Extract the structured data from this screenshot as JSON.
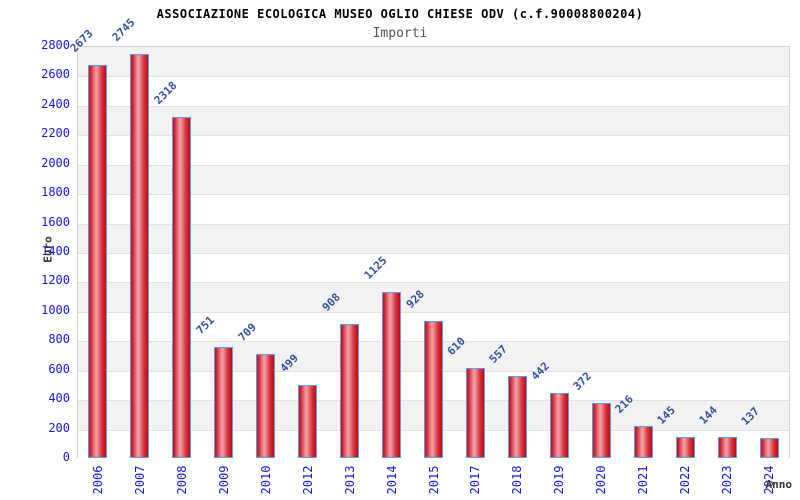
{
  "chart_data": {
    "type": "bar",
    "title": "ASSOCIAZIONE ECOLOGICA MUSEO OGLIO CHIESE ODV (c.f.90008800204)",
    "subtitle": "Importi",
    "xlabel": "Anno",
    "ylabel": "Euro",
    "categories": [
      "2006",
      "2007",
      "2008",
      "2009",
      "2010",
      "2012",
      "2013",
      "2014",
      "2015",
      "2017",
      "2018",
      "2019",
      "2020",
      "2021",
      "2022",
      "2023",
      "2024"
    ],
    "values": [
      2673,
      2745,
      2318,
      751,
      709,
      499,
      908,
      1125,
      928,
      610,
      557,
      442,
      372,
      216,
      145,
      144,
      137
    ],
    "ylim": [
      0,
      2800
    ],
    "ytick_step": 200,
    "grid": "horizontal-bands-alternating",
    "legend": "none",
    "colors": {
      "bar_edge": "#c00d18",
      "bar_highlight": "#efa5a9",
      "bar_border": "#5b9fe8",
      "tick_label": "#1717dd",
      "value_label": "#33519e",
      "band_gray": "#f2f2f2",
      "band_white": "#ffffff",
      "gridline": "#e2e2e2",
      "plot_border": "#d4d4d4",
      "title": "#000000",
      "subtitle": "#555555",
      "axis_title": "#333333"
    }
  }
}
